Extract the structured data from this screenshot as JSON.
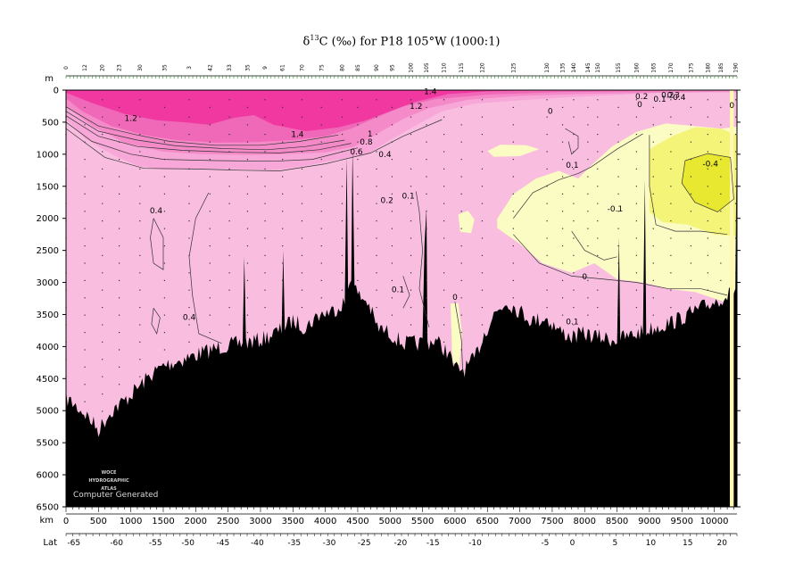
{
  "title": {
    "delta": "δ",
    "iso": "13",
    "rest": "C (‰) for P18 105°W (1000:1)"
  },
  "chart_data": {
    "type": "section-contour",
    "y_unit": "m",
    "x_unit": "km",
    "lat_label": "Lat",
    "ylim": [
      6500,
      0
    ],
    "xlim": [
      0,
      10350
    ],
    "y_ticks": [
      0,
      500,
      1000,
      1500,
      2000,
      2500,
      3000,
      3500,
      4000,
      4500,
      5000,
      5500,
      6000,
      6500
    ],
    "x_ticks": [
      0,
      500,
      1000,
      1500,
      2000,
      2500,
      3000,
      3500,
      4000,
      4500,
      5000,
      5500,
      6000,
      6500,
      7000,
      7500,
      8000,
      8500,
      9000,
      9500,
      10000
    ],
    "lat_ticks": [
      {
        "km": 120,
        "lat": "-65"
      },
      {
        "km": 780,
        "lat": "-60"
      },
      {
        "km": 1380,
        "lat": "-55"
      },
      {
        "km": 1880,
        "lat": "-50"
      },
      {
        "km": 2420,
        "lat": "-45"
      },
      {
        "km": 2950,
        "lat": "-40"
      },
      {
        "km": 3520,
        "lat": "-35"
      },
      {
        "km": 4060,
        "lat": "-30"
      },
      {
        "km": 4600,
        "lat": "-25"
      },
      {
        "km": 5160,
        "lat": "-20"
      },
      {
        "km": 5660,
        "lat": "-15"
      },
      {
        "km": 6310,
        "lat": "-10"
      },
      {
        "km": 7390,
        "lat": "-5"
      },
      {
        "km": 7810,
        "lat": "0"
      },
      {
        "km": 8470,
        "lat": "5"
      },
      {
        "km": 9020,
        "lat": "10"
      },
      {
        "km": 9590,
        "lat": "15"
      },
      {
        "km": 10120,
        "lat": "20"
      }
    ],
    "stations": [
      {
        "km": 0,
        "label": "0"
      },
      {
        "km": 290,
        "label": "12"
      },
      {
        "km": 560,
        "label": "20"
      },
      {
        "km": 820,
        "label": "23"
      },
      {
        "km": 1140,
        "label": "30"
      },
      {
        "km": 1520,
        "label": "35"
      },
      {
        "km": 1900,
        "label": "3"
      },
      {
        "km": 2220,
        "label": "42"
      },
      {
        "km": 2520,
        "label": "33"
      },
      {
        "km": 2800,
        "label": "35"
      },
      {
        "km": 3070,
        "label": "9"
      },
      {
        "km": 3340,
        "label": "61"
      },
      {
        "km": 3640,
        "label": "70"
      },
      {
        "km": 3940,
        "label": "75"
      },
      {
        "km": 4260,
        "label": "80"
      },
      {
        "km": 4500,
        "label": "85"
      },
      {
        "km": 4790,
        "label": "90"
      },
      {
        "km": 5030,
        "label": "95"
      },
      {
        "km": 5320,
        "label": "100"
      },
      {
        "km": 5560,
        "label": "105"
      },
      {
        "km": 5830,
        "label": "110"
      },
      {
        "km": 6100,
        "label": "115"
      },
      {
        "km": 6420,
        "label": "120"
      },
      {
        "km": 6900,
        "label": "125"
      },
      {
        "km": 7420,
        "label": "130"
      },
      {
        "km": 7660,
        "label": "135"
      },
      {
        "km": 7830,
        "label": "140"
      },
      {
        "km": 8050,
        "label": "145"
      },
      {
        "km": 8200,
        "label": "150"
      },
      {
        "km": 8520,
        "label": "155"
      },
      {
        "km": 8800,
        "label": "160"
      },
      {
        "km": 9060,
        "label": "165"
      },
      {
        "km": 9330,
        "label": "170"
      },
      {
        "km": 9640,
        "label": "175"
      },
      {
        "km": 9900,
        "label": "180"
      },
      {
        "km": 10100,
        "label": "185"
      },
      {
        "km": 10330,
        "label": "190"
      }
    ],
    "contour_labels": [
      {
        "value": "1.2",
        "km": 1000,
        "depth": 440
      },
      {
        "value": "1.4",
        "km": 3570,
        "depth": 690
      },
      {
        "value": "1",
        "km": 4690,
        "depth": 680
      },
      {
        "value": "0.8",
        "km": 4630,
        "depth": 810
      },
      {
        "value": "0.6",
        "km": 4480,
        "depth": 960
      },
      {
        "value": "0.4",
        "km": 4920,
        "depth": 1000
      },
      {
        "value": "1.4",
        "km": 5620,
        "depth": 20
      },
      {
        "value": "1.2",
        "km": 5400,
        "depth": 250
      },
      {
        "value": "0.2",
        "km": 4950,
        "depth": 1720
      },
      {
        "value": "0.1",
        "km": 5280,
        "depth": 1650
      },
      {
        "value": "0.4",
        "km": 1390,
        "depth": 1880
      },
      {
        "value": "0.4",
        "km": 1900,
        "depth": 3540
      },
      {
        "value": "0.1",
        "km": 5120,
        "depth": 3110
      },
      {
        "value": "0",
        "km": 6000,
        "depth": 3230
      },
      {
        "value": "0",
        "km": 7470,
        "depth": 330
      },
      {
        "value": "0.1",
        "km": 7810,
        "depth": 1170
      },
      {
        "value": "-0.1",
        "km": 8470,
        "depth": 1850
      },
      {
        "value": "0",
        "km": 8000,
        "depth": 2910
      },
      {
        "value": "0.1",
        "km": 7810,
        "depth": 3610
      },
      {
        "value": "0.2",
        "km": 8880,
        "depth": 100
      },
      {
        "value": "0",
        "km": 8850,
        "depth": 220
      },
      {
        "value": "0.1",
        "km": 9160,
        "depth": 140
      },
      {
        "value": "0.2",
        "km": 9280,
        "depth": 80
      },
      {
        "value": "0.3",
        "km": 9370,
        "depth": 80
      },
      {
        "value": "0.4",
        "km": 9460,
        "depth": 110
      },
      {
        "value": "-0.4",
        "km": 9940,
        "depth": 1150
      },
      {
        "value": "0",
        "km": 10270,
        "depth": 240
      }
    ],
    "colors": {
      "band_gt_1_4": "#f038a0",
      "band_1_2": "#f068b8",
      "band_1_0": "#f48ac8",
      "band_0_6": "#f8a8d8",
      "band_0_0": "#f9bde0",
      "band_neg_0": "#fbfbc4",
      "band_neg_0_2": "#f4f478",
      "band_neg_0_4": "#e8e830",
      "seafloor": "#000000"
    },
    "credit_lines": [
      "WOCE",
      "HYDROGRAPHIC",
      "ATLAS"
    ],
    "credit_caption": "Computer Generated"
  }
}
